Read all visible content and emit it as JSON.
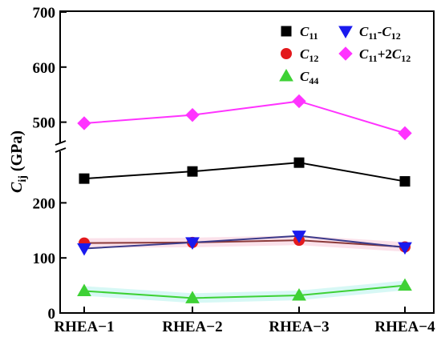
{
  "chart_data": {
    "type": "line",
    "categories": [
      "RHEA−1",
      "RHEA−2",
      "RHEA−3",
      "RHEA−4"
    ],
    "ylabel": {
      "main": "C",
      "sub": "ij",
      "unit": " (GPa)"
    },
    "y_ticks_lower": [
      "0",
      "100",
      "200"
    ],
    "y_ticks_upper": [
      "500",
      "600",
      "700"
    ],
    "axis_break": {
      "lower_max": 290,
      "upper_min": 460
    },
    "series": [
      {
        "key": "C11",
        "name": {
          "main": "C",
          "sub": "11",
          "rest": ""
        },
        "marker": "square",
        "color": "#000000",
        "values": [
          244,
          257,
          273,
          239
        ]
      },
      {
        "key": "C12",
        "name": {
          "main": "C",
          "sub": "12",
          "rest": ""
        },
        "marker": "circle",
        "color": "#e3191c",
        "line_color": "#8b3a3a",
        "values": [
          127,
          128,
          132,
          120
        ]
      },
      {
        "key": "C44",
        "name": {
          "main": "C",
          "sub": "44",
          "rest": ""
        },
        "marker": "triangle-up",
        "color": "#3ed135",
        "values": [
          40,
          27,
          32,
          50
        ]
      },
      {
        "key": "C11-C12",
        "name": {
          "main": "C",
          "sub": "11",
          "rest": "-C",
          "sub2": "12"
        },
        "marker": "triangle-down",
        "color": "#1a1aee",
        "line_color": "#3a3a8a",
        "values": [
          117,
          128,
          140,
          119
        ]
      },
      {
        "key": "C11+2C12",
        "name": {
          "main": "C",
          "sub": "11",
          "rest": "+2C",
          "sub2": "12"
        },
        "marker": "diamond",
        "color": "#ff33ff",
        "values": [
          498,
          513,
          538,
          480
        ]
      }
    ]
  }
}
